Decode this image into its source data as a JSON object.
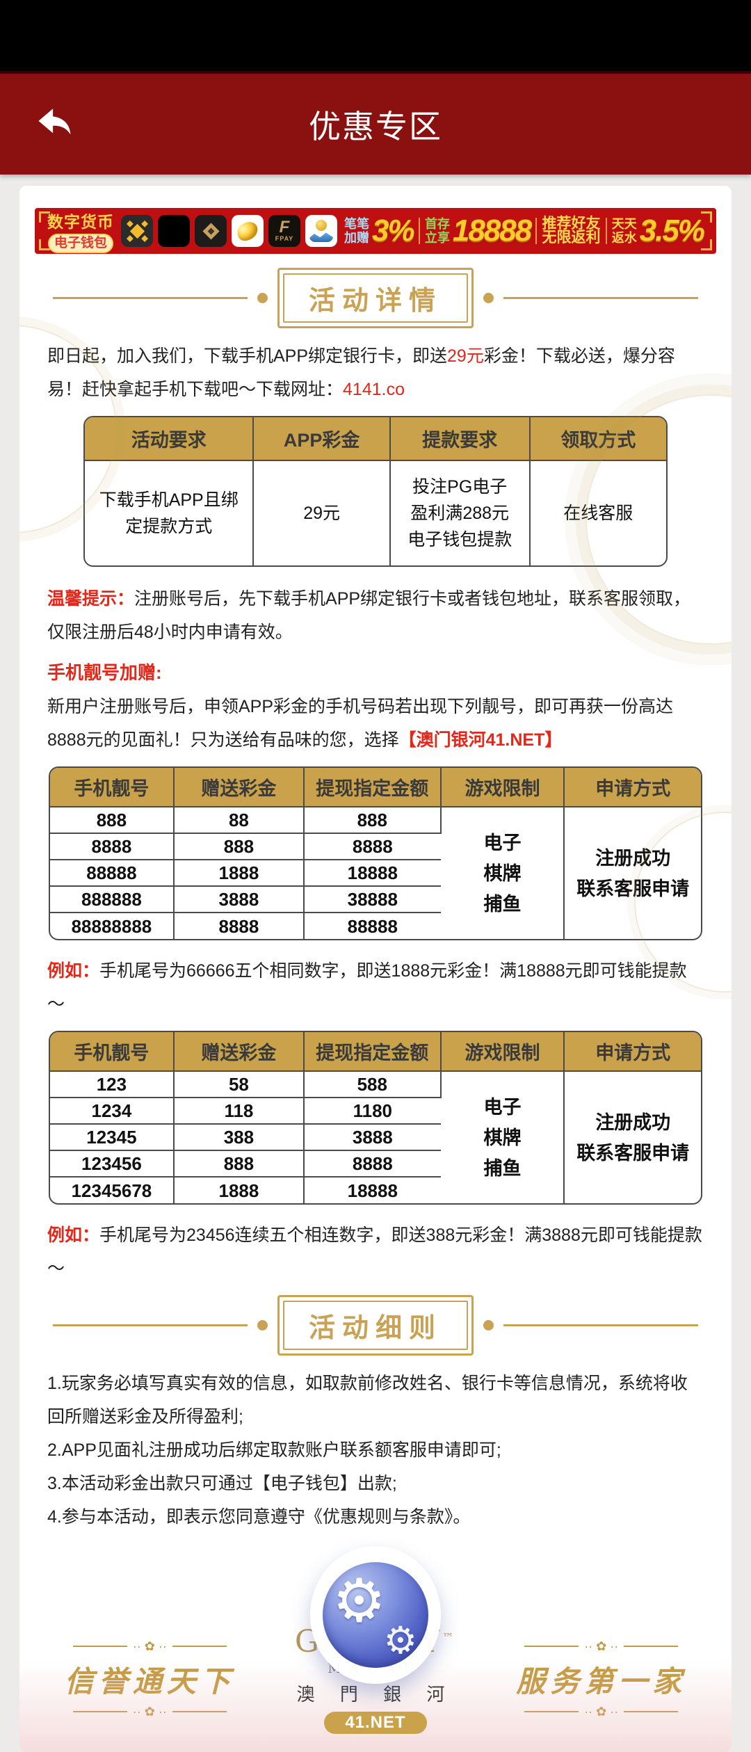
{
  "header": {
    "title": "优惠专区"
  },
  "banner": {
    "wallet_label_top": "数字货币",
    "wallet_label_bottom": "电子钱包",
    "fpay_letter": "F",
    "fpay_text": "FPAY",
    "icons": [
      "binance-icon",
      "okx-icon",
      "tokenpocket-icon",
      "gold-bean-icon",
      "fpay-icon",
      "wallet-icon"
    ],
    "offers": [
      {
        "label_lines": [
          "笔笔",
          "加赠"
        ],
        "value": "3%",
        "label_color": "#a8dcf8"
      },
      {
        "label_lines": [
          "首存",
          "立享"
        ],
        "value": "18888",
        "label_color": "#90d95a"
      },
      {
        "label_lines": [
          "推荐好友",
          "无限返利"
        ],
        "value": "",
        "label_color": "#ffd94e"
      },
      {
        "label_lines": [
          "天天",
          "返水"
        ],
        "value": "3.5%",
        "label_color": "#ffd94e"
      }
    ]
  },
  "section_details": {
    "title": "活动详情"
  },
  "section_rules": {
    "title": "活动细则"
  },
  "intro": {
    "part1": "即日起，加入我们，下载手机APP绑定银行卡，即送",
    "highlight1": "29元",
    "part2": "彩金！下载必送，爆分容易！赶快拿起手机下载吧～下载网址：",
    "link": "4141.co"
  },
  "table1": {
    "headers": [
      "活动要求",
      "APP彩金",
      "提款要求",
      "领取方式"
    ],
    "row": {
      "requirement": "下载手机APP且绑定提款方式",
      "bonus": "29元",
      "withdraw_lines": [
        "投注PG电子",
        "盈利满288元",
        "电子钱包提款"
      ],
      "method": "在线客服"
    }
  },
  "tip": {
    "label": "温馨提示：",
    "text": "注册账号后，先下载手机APP绑定银行卡或者钱包地址，联系客服领取，仅限注册后48小时内申请有效。"
  },
  "bonus": {
    "heading": "手机靓号加赠:",
    "intro": "新用户注册账号后，申领APP彩金的手机号码若出现下列靓号，即可再获一份高达8888元的见面礼！只为送给有品味的您，选择",
    "intro_highlight": "【澳门银河41.NET】"
  },
  "lucky_tables": [
    {
      "headers": [
        "手机靓号",
        "赠送彩金",
        "提现指定金额",
        "游戏限制",
        "申请方式"
      ],
      "rows": [
        [
          "888",
          "88",
          "888"
        ],
        [
          "8888",
          "888",
          "8888"
        ],
        [
          "88888",
          "1888",
          "18888"
        ],
        [
          "888888",
          "3888",
          "38888"
        ],
        [
          "88888888",
          "8888",
          "88888"
        ]
      ],
      "game_limit_lines": [
        "电子",
        "棋牌",
        "捕鱼"
      ],
      "apply_lines": [
        "注册成功",
        "联系客服申请"
      ]
    },
    {
      "headers": [
        "手机靓号",
        "赠送彩金",
        "提现指定金额",
        "游戏限制",
        "申请方式"
      ],
      "rows": [
        [
          "123",
          "58",
          "588"
        ],
        [
          "1234",
          "118",
          "1180"
        ],
        [
          "12345",
          "388",
          "3888"
        ],
        [
          "123456",
          "888",
          "8888"
        ],
        [
          "12345678",
          "1888",
          "18888"
        ]
      ],
      "game_limit_lines": [
        "电子",
        "棋牌",
        "捕鱼"
      ],
      "apply_lines": [
        "注册成功",
        "联系客服申请"
      ]
    }
  ],
  "examples": [
    {
      "label": "例如：",
      "text": "手机尾号为66666五个相同数字，即送1888元彩金！满18888元即可钱能提款～"
    },
    {
      "label": "例如：",
      "text": "手机尾号为23456连续五个相连数字，即送388元彩金！满3888元即可钱能提款～"
    }
  ],
  "rules": [
    "1.玩家务必填写真实有效的信息，如取款前修改姓名、银行卡等信息情况，系统将收回所赠送彩金及所得盈利;",
    "2.APP见面礼注册成功后绑定取款账户联系额客服申请即可;",
    "3.本活动彩金出款只可通过【电子钱包】出款;",
    "4.参与本活动，即表示您同意遵守《优惠规则与条款》。"
  ],
  "footer": {
    "left_motto": "信誉通天下",
    "right_motto": "服务第一家",
    "ornament": "·· ✿ ··",
    "brand": "GALAXY",
    "brand_tm": "™",
    "brand_sub": "MACAU",
    "brand_cn": "澳 門 銀 河",
    "brand_badge": "41.NET",
    "gear_glyph": "⚙"
  },
  "colors": {
    "header_red": "#8a1110",
    "banner_red": "#bf0f11",
    "gold": "#c9a24b",
    "accent_red": "#e52618"
  }
}
